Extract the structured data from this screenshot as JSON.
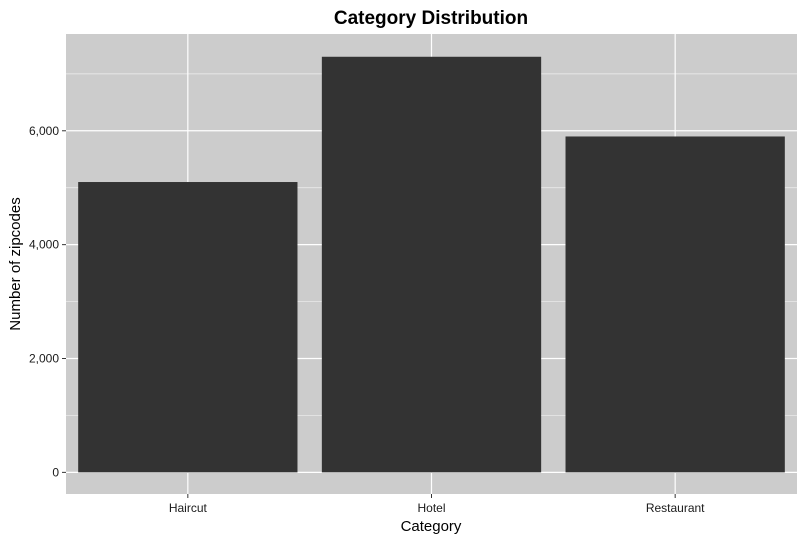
{
  "chart_data": {
    "type": "bar",
    "title": "Category Distribution",
    "xlabel": "Category",
    "ylabel": "Number of zipcodes",
    "categories": [
      "Haircut",
      "Hotel",
      "Restaurant"
    ],
    "values": [
      5100,
      7300,
      5900
    ],
    "ylim": [
      -380,
      7700
    ],
    "yticks": [
      0,
      2000,
      4000,
      6000
    ],
    "ytick_labels": [
      "0",
      "2,000",
      "4,000",
      "6,000"
    ],
    "grid": true,
    "legend": "none",
    "colors": {
      "bar": "#333333",
      "panel_background": "#cccccc",
      "grid": "#ffffff"
    }
  }
}
